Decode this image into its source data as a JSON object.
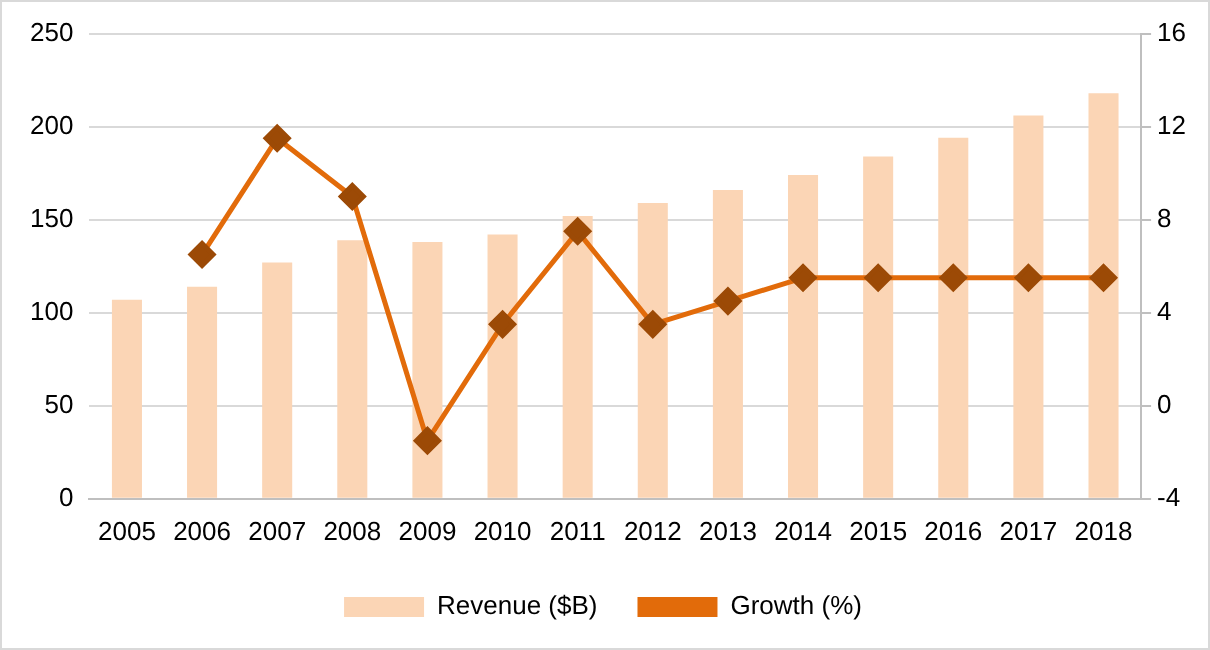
{
  "chart_data": {
    "type": "bar",
    "categories": [
      "2005",
      "2006",
      "2007",
      "2008",
      "2009",
      "2010",
      "2011",
      "2012",
      "2013",
      "2014",
      "2015",
      "2016",
      "2017",
      "2018"
    ],
    "series": [
      {
        "name": "Revenue ($B)",
        "color": "#fbd5b5",
        "values": [
          107,
          114,
          127,
          139,
          138,
          142,
          152,
          159,
          166,
          174,
          184,
          194,
          206,
          218
        ]
      },
      {
        "name": "Growth (%)",
        "type": "line",
        "axis": "y2",
        "color": "#e26b0a",
        "marker": "diamond",
        "values": [
          null,
          6.5,
          11.5,
          9,
          -1.5,
          3.5,
          7.5,
          3.5,
          4.5,
          5.5,
          5.5,
          5.5,
          5.5,
          5.5
        ]
      }
    ],
    "ylim": [
      0,
      250
    ],
    "yticks": [
      0,
      50,
      100,
      150,
      200,
      250
    ],
    "y2lim": [
      -4,
      16
    ],
    "y2ticks": [
      -4,
      0,
      4,
      8,
      12,
      16
    ],
    "grid": "y",
    "legend": "bottom"
  }
}
